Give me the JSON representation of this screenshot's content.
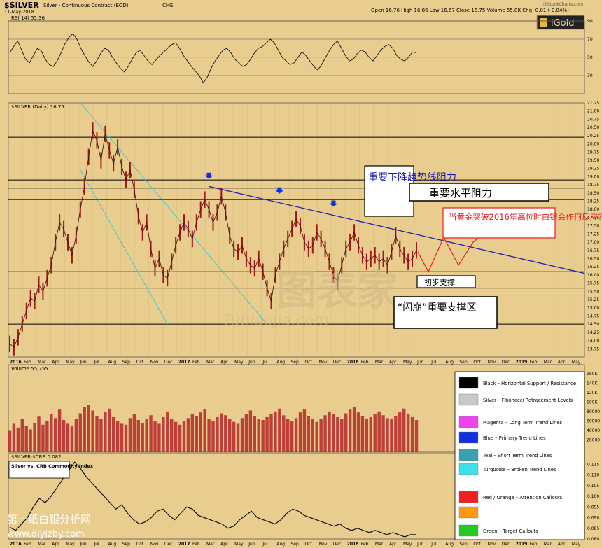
{
  "header": {
    "symbol": "$SILVER",
    "name": "Silver - Continuous Contract (EOD)",
    "exchange": "CME",
    "date": "11-May-2018",
    "ohlc": "Open 16.76  High 16.86  Low 16.67  Close 16.75  Volume 55.8K  Chg -0.01 (-0.04%)",
    "watermark": "@StockCharts.com",
    "logo": "iGold"
  },
  "colors": {
    "background": "#e9cd8f",
    "price_bars": "#a01818",
    "downtrend_line": "#2020b0",
    "teal_channel": "#40c8d0",
    "horizontal_lines": "#000000",
    "callout_red": "#e02020",
    "volume_bars": "#b83030"
  },
  "x_axis": {
    "months": [
      "2016",
      "Feb",
      "Mar",
      "Apr",
      "May",
      "Jun",
      "Jul",
      "Aug",
      "Sep",
      "Oct",
      "Nov",
      "Dec",
      "2017",
      "Feb",
      "Mar",
      "Apr",
      "May",
      "Jun",
      "Jul",
      "Aug",
      "Sep",
      "Oct",
      "Nov",
      "Dec",
      "2018",
      "Feb",
      "Mar",
      "Apr",
      "May",
      "Jun",
      "Jul",
      "Aug",
      "Sep",
      "Oct",
      "Nov",
      "Dec",
      "2019",
      "Feb",
      "Mar",
      "Apr",
      "May"
    ]
  },
  "chart_data": [
    {
      "type": "line",
      "panel": "rsi",
      "title": "RSI(14) 55.36",
      "ylim": [
        10,
        90
      ],
      "y_ticks": [
        30,
        50,
        70,
        90
      ],
      "series": [
        {
          "values": [
            55,
            62,
            68,
            58,
            48,
            44,
            52,
            60,
            57,
            48,
            42,
            40,
            46,
            55,
            65,
            72,
            76,
            70,
            60,
            52,
            45,
            40,
            46,
            54,
            60,
            58,
            50,
            44,
            38,
            34,
            40,
            48,
            55,
            58,
            52,
            46,
            42,
            47,
            52,
            56,
            60,
            64,
            66,
            60,
            52,
            46,
            40,
            35,
            30,
            22,
            28,
            38,
            46,
            52,
            58,
            60,
            55,
            48,
            44,
            40,
            42,
            48,
            55,
            60,
            62,
            66,
            70,
            66,
            58,
            50,
            46,
            42,
            44,
            50,
            56,
            52,
            46,
            40,
            36,
            42,
            50,
            58,
            64,
            68,
            60,
            52,
            46,
            48,
            54,
            58,
            56,
            50,
            46,
            52,
            58,
            62,
            64,
            60,
            52,
            48,
            46,
            50,
            56,
            55
          ]
        }
      ]
    },
    {
      "type": "line",
      "panel": "price",
      "title": "$SILVER (Daily) 16.75",
      "ylim": [
        13.5,
        21.25
      ],
      "y_ticks": [
        13.75,
        14.0,
        14.25,
        14.5,
        14.75,
        15.0,
        15.25,
        15.5,
        15.75,
        16.0,
        16.25,
        16.5,
        16.75,
        17.0,
        17.25,
        17.5,
        17.75,
        18.0,
        18.25,
        18.5,
        18.75,
        19.0,
        19.25,
        19.5,
        19.75,
        20.0,
        20.25,
        20.5,
        20.75,
        21.0,
        21.25
      ],
      "horizontal_levels": [
        14.5,
        15.6,
        16.1,
        18.3,
        18.65,
        18.9,
        20.2,
        20.3
      ],
      "annotations": [
        "重要下降趋势线阻力",
        "重要水平阻力",
        "当黄金突破2016年高位时白银会作何反应?",
        "初步支撑",
        "“闪崩”重要支撑区"
      ],
      "watermark_text": "图表家",
      "watermark_sub": "Tubiaojia.com",
      "series": [
        {
          "values": [
            13.9,
            13.8,
            14.1,
            14.5,
            14.9,
            15.3,
            15.2,
            15.7,
            15.5,
            15.9,
            16.3,
            17.0,
            17.6,
            17.4,
            17.0,
            16.6,
            17.2,
            18.0,
            18.7,
            19.6,
            20.4,
            20.1,
            19.5,
            20.3,
            19.8,
            19.4,
            19.9,
            19.3,
            18.9,
            19.2,
            18.6,
            17.8,
            17.3,
            17.6,
            16.8,
            16.2,
            16.5,
            16.0,
            15.9,
            16.4,
            16.9,
            17.3,
            17.6,
            17.4,
            17.1,
            17.6,
            18.0,
            18.3,
            18.0,
            17.6,
            17.9,
            18.4,
            17.9,
            17.2,
            16.8,
            16.7,
            16.9,
            16.5,
            16.3,
            16.2,
            16.5,
            16.1,
            15.6,
            15.2,
            16.0,
            16.4,
            16.8,
            17.1,
            17.4,
            17.7,
            17.5,
            17.0,
            16.8,
            16.9,
            17.3,
            17.1,
            16.8,
            16.4,
            16.0,
            15.8,
            16.3,
            16.8,
            17.0,
            17.3,
            16.9,
            16.6,
            16.4,
            16.5,
            16.6,
            16.4,
            16.5,
            16.3,
            16.7,
            17.2,
            16.8,
            16.6,
            16.4,
            16.5,
            16.75
          ]
        }
      ]
    },
    {
      "type": "bar",
      "panel": "volume",
      "title": "Volume 55,755",
      "y_ticks": [
        "160K",
        "140K",
        "120K",
        "100K",
        "80000",
        "60000",
        "40000",
        "20000"
      ],
      "series": [
        {
          "values": [
            45,
            60,
            52,
            70,
            55,
            48,
            62,
            75,
            58,
            66,
            80,
            72,
            90,
            68,
            60,
            55,
            70,
            82,
            95,
            100,
            88,
            76,
            70,
            85,
            92,
            74,
            66,
            60,
            58,
            72,
            80,
            68,
            62,
            70,
            78,
            65,
            60,
            74,
            86,
            70,
            64,
            58,
            66,
            72,
            80,
            76,
            84,
            90,
            70,
            66,
            74,
            82,
            78,
            70,
            64,
            60,
            72,
            80,
            88,
            76,
            70,
            68,
            74,
            80,
            86,
            92,
            78,
            70,
            66,
            72,
            84,
            90,
            76,
            70,
            64,
            70,
            78,
            86,
            80,
            74,
            70,
            82,
            90,
            96,
            84,
            76,
            70,
            74,
            80,
            86,
            78,
            72,
            70,
            76,
            84,
            92,
            80,
            74,
            68
          ]
        }
      ]
    },
    {
      "type": "line",
      "panel": "ratio",
      "title": "$SILVER:$CRB 0.082",
      "subtitle": "Silver vs. CRB Commodity Index",
      "ylim": [
        0.08,
        0.12
      ],
      "y_ticks": [
        0.08,
        0.085,
        0.09,
        0.095,
        0.1,
        0.105,
        0.11,
        0.115
      ],
      "series": [
        {
          "values": [
            0.0855,
            0.084,
            0.087,
            0.09,
            0.095,
            0.099,
            0.097,
            0.1,
            0.104,
            0.108,
            0.112,
            0.116,
            0.113,
            0.109,
            0.106,
            0.103,
            0.1,
            0.097,
            0.094,
            0.096,
            0.092,
            0.089,
            0.087,
            0.088,
            0.09,
            0.093,
            0.094,
            0.091,
            0.089,
            0.092,
            0.095,
            0.094,
            0.091,
            0.09,
            0.089,
            0.088,
            0.087,
            0.085,
            0.086,
            0.089,
            0.091,
            0.093,
            0.09,
            0.089,
            0.088,
            0.087,
            0.089,
            0.092,
            0.094,
            0.093,
            0.091,
            0.09,
            0.089,
            0.088,
            0.087,
            0.086,
            0.087,
            0.085,
            0.084,
            0.085,
            0.084,
            0.083,
            0.084,
            0.083,
            0.082,
            0.083,
            0.082,
            0.081,
            0.082,
            0.082
          ]
        }
      ]
    }
  ],
  "legend": {
    "items": [
      {
        "label": "Black – Horizontal Support / Resistance",
        "color": "#000000"
      },
      {
        "label": "Silver – Fibonacci Retracement Levels",
        "color": "#c8c8c8"
      },
      {
        "label": "Magenta – Long Term Trend Lines",
        "color": "#ee44ee"
      },
      {
        "label": "Blue – Primary Trend Lines",
        "color": "#1030e0"
      },
      {
        "label": "Teal – Short Term Trend Lines",
        "color": "#3aa0b0"
      },
      {
        "label": "Turquoise – Broken Trend Lines",
        "color": "#40e0e8"
      },
      {
        "label": "Red / Orange – Attention Callouts",
        "color": "#ee2020"
      },
      {
        "label": "",
        "color": "#ff9a10"
      },
      {
        "label": "Green – Target Callouts",
        "color": "#22cc22"
      }
    ]
  },
  "footer": {
    "site_name": "第一纸白银分析网",
    "site_url": "www.diyizby.com"
  }
}
